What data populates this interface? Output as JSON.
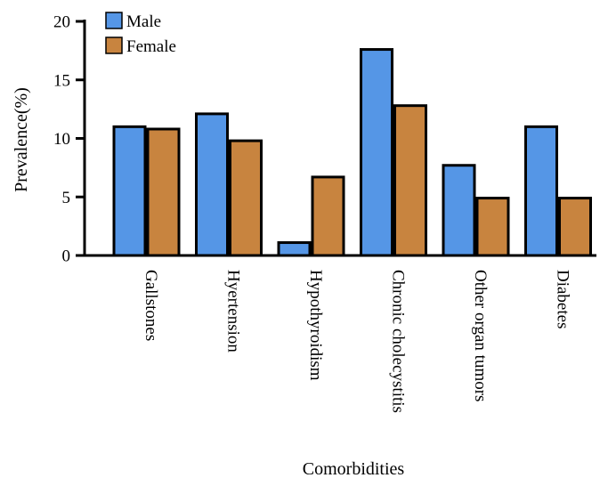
{
  "chart_data": {
    "type": "bar",
    "title": "",
    "xlabel": "Comorbidities",
    "ylabel": "Prevalence(%)",
    "ylim": [
      0,
      20
    ],
    "yticks": [
      0,
      5,
      10,
      15,
      20
    ],
    "grid": false,
    "legend_position": "top-left",
    "categories": [
      "Gallstones",
      "Hyertension",
      "Hypothyroidism",
      "Chronic cholecystitis",
      "Other organ tumors",
      "Diabetes"
    ],
    "series": [
      {
        "name": "Male",
        "color": "#5596e6",
        "values": [
          11.0,
          12.1,
          1.1,
          17.6,
          7.7,
          11.0
        ]
      },
      {
        "name": "Female",
        "color": "#c8843f",
        "values": [
          10.8,
          9.8,
          6.7,
          12.8,
          4.9,
          4.9
        ]
      }
    ]
  }
}
